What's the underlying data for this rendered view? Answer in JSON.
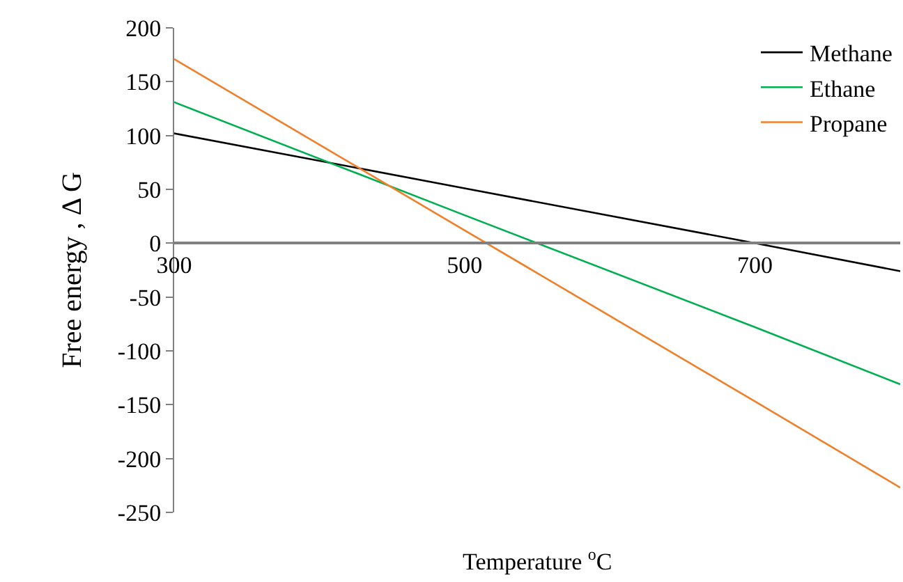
{
  "chart_data": {
    "type": "line",
    "xlabel": "Temperature $^{o}$C",
    "ylabel": "Free energy , Δ G",
    "xlim": [
      300,
      800
    ],
    "xticks": [
      300,
      500,
      700
    ],
    "ylim": [
      -250,
      200
    ],
    "yticks": [
      -250,
      -200,
      -150,
      -100,
      -50,
      0,
      50,
      100,
      150,
      200
    ],
    "legend": "top right",
    "marker": "none",
    "line_style": "solid",
    "series": [
      {
        "name": "Methane",
        "color": "#000000",
        "x": [
          300,
          500,
          700,
          800
        ],
        "values": [
          102,
          51,
          0,
          -26
        ]
      },
      {
        "name": "Ethane",
        "color": "#00b050",
        "x": [
          300,
          500,
          700,
          800
        ],
        "values": [
          131,
          26,
          -78,
          -131
        ]
      },
      {
        "name": "Propane",
        "color": "#f07f2a",
        "x": [
          300,
          500,
          700,
          800
        ],
        "values": [
          171,
          12,
          -147,
          -227
        ]
      }
    ]
  }
}
